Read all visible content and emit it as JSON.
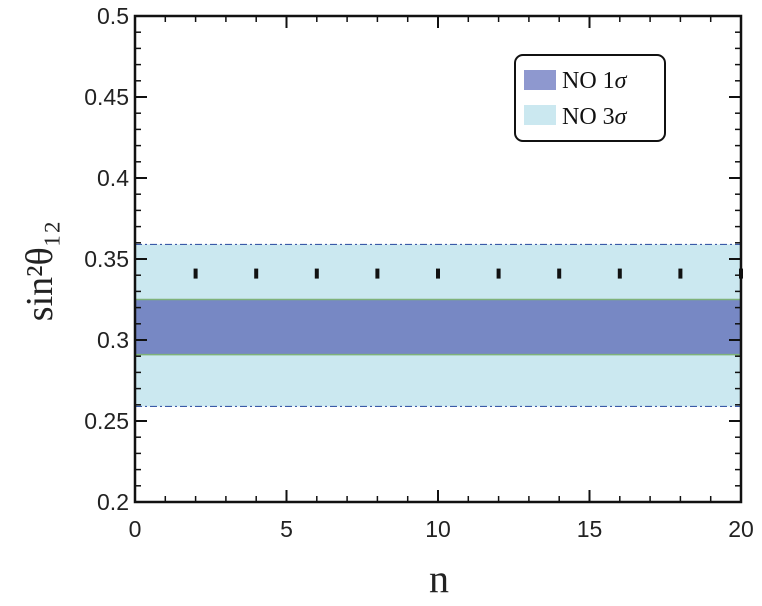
{
  "chart_data": {
    "type": "area",
    "xlabel": "n",
    "ylabel": "sin²θ₁₂",
    "xlim": [
      0,
      20
    ],
    "ylim": [
      0.2,
      0.5
    ],
    "x_ticks": [
      0,
      5,
      10,
      15,
      20
    ],
    "x_tick_labels": [
      "0",
      "5",
      "10",
      "15",
      "20"
    ],
    "y_ticks": [
      0.2,
      0.25,
      0.3,
      0.35,
      0.4,
      0.45,
      0.5
    ],
    "y_tick_labels": [
      "0.2",
      "0.25",
      "0.3",
      "0.35",
      "0.4",
      "0.45",
      "0.5"
    ],
    "bands": [
      {
        "name": "NO 1σ",
        "y_low": 0.291,
        "y_high": 0.325,
        "color": "#7788c4"
      },
      {
        "name": "NO 3σ",
        "y_low": 0.259,
        "y_high": 0.359,
        "color": "#cbe8f0"
      }
    ],
    "points": {
      "x": [
        2,
        4,
        6,
        8,
        10,
        12,
        14,
        16,
        18,
        20
      ],
      "y": [
        0.341,
        0.341,
        0.341,
        0.341,
        0.341,
        0.341,
        0.341,
        0.341,
        0.341,
        0.341
      ],
      "marker": "vertical-dash",
      "color": "#111111"
    },
    "legend": {
      "position": "top-right",
      "entries": [
        {
          "label_main": "NO 1",
          "label_sigma": "σ",
          "color": "#8e98cf"
        },
        {
          "label_main": "NO 3",
          "label_sigma": "σ",
          "color": "#cbe8f0"
        }
      ]
    },
    "grid": false
  }
}
